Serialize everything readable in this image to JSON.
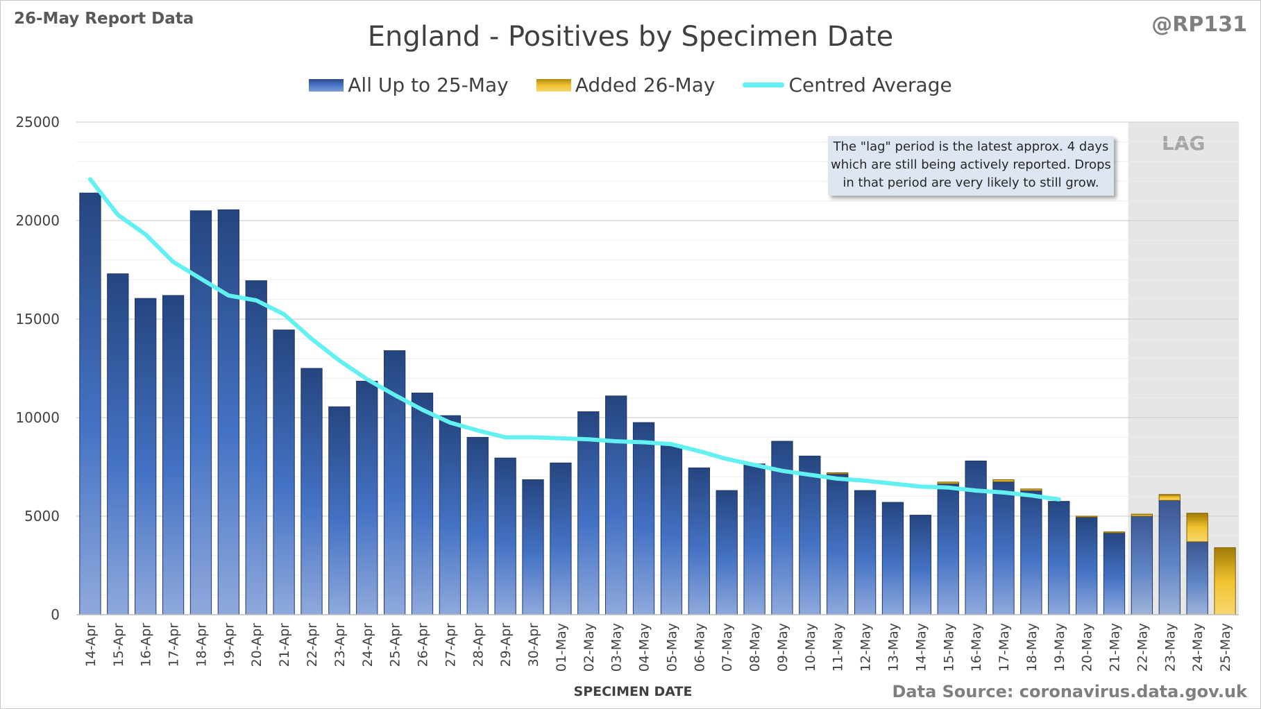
{
  "header": {
    "report_label": "26-May Report Data",
    "handle": "@RP131",
    "source": "Data Source: coronavirus.data.gov.uk"
  },
  "note_lines": [
    "The \"lag\" period is the latest approx. 4 days",
    "which are still being actively reported. Drops",
    "in that period are very likely to still grow."
  ],
  "lag_label": "LAG",
  "chart_data": {
    "type": "bar",
    "title": "England - Positives by Specimen Date",
    "xlabel": "SPECIMEN DATE",
    "ylabel": "",
    "ylim": [
      0,
      25000
    ],
    "yticks": [
      0,
      5000,
      10000,
      15000,
      20000,
      25000
    ],
    "grid": true,
    "legend_position": "top",
    "stacked": true,
    "categories": [
      "14-Apr",
      "15-Apr",
      "16-Apr",
      "17-Apr",
      "18-Apr",
      "19-Apr",
      "20-Apr",
      "21-Apr",
      "22-Apr",
      "23-Apr",
      "24-Apr",
      "25-Apr",
      "26-Apr",
      "27-Apr",
      "28-Apr",
      "29-Apr",
      "30-Apr",
      "01-May",
      "02-May",
      "03-May",
      "04-May",
      "05-May",
      "06-May",
      "07-May",
      "08-May",
      "09-May",
      "10-May",
      "11-May",
      "12-May",
      "13-May",
      "14-May",
      "15-May",
      "16-May",
      "17-May",
      "18-May",
      "19-May",
      "20-May",
      "21-May",
      "22-May",
      "23-May",
      "24-May",
      "25-May"
    ],
    "series": [
      {
        "name": "All Up to 25-May",
        "color": "#2f5597",
        "values": [
          21400,
          17300,
          16050,
          16200,
          20500,
          20550,
          16950,
          14450,
          12500,
          10550,
          11850,
          13400,
          11250,
          10100,
          9000,
          7950,
          6850,
          7700,
          10300,
          11100,
          9750,
          8600,
          7450,
          6300,
          7650,
          8800,
          8050,
          7150,
          6300,
          5700,
          5050,
          6650,
          7800,
          6750,
          6300,
          5750,
          4950,
          4150,
          5000,
          5800,
          3700,
          0
        ]
      },
      {
        "name": "Added 26-May",
        "color": "#f2c230",
        "values": [
          0,
          0,
          0,
          0,
          0,
          0,
          0,
          0,
          0,
          0,
          0,
          0,
          0,
          0,
          0,
          0,
          0,
          0,
          0,
          0,
          0,
          0,
          0,
          0,
          0,
          0,
          0,
          50,
          0,
          0,
          0,
          80,
          0,
          100,
          80,
          0,
          50,
          50,
          100,
          300,
          1450,
          3400
        ]
      },
      {
        "name": "Centred Average",
        "type": "line",
        "color": "#62f0f0",
        "values": [
          22100,
          20300,
          19300,
          17900,
          17050,
          16200,
          15950,
          15250,
          14000,
          12900,
          11950,
          11150,
          10400,
          9750,
          9350,
          9000,
          9000,
          8950,
          8900,
          8800,
          8750,
          8650,
          8300,
          7900,
          7600,
          7300,
          7100,
          6900,
          6800,
          6650,
          6500,
          6450,
          6300,
          6200,
          6050,
          5850,
          null,
          null,
          null,
          null,
          null,
          null
        ]
      }
    ],
    "lag_start": "22-May"
  }
}
